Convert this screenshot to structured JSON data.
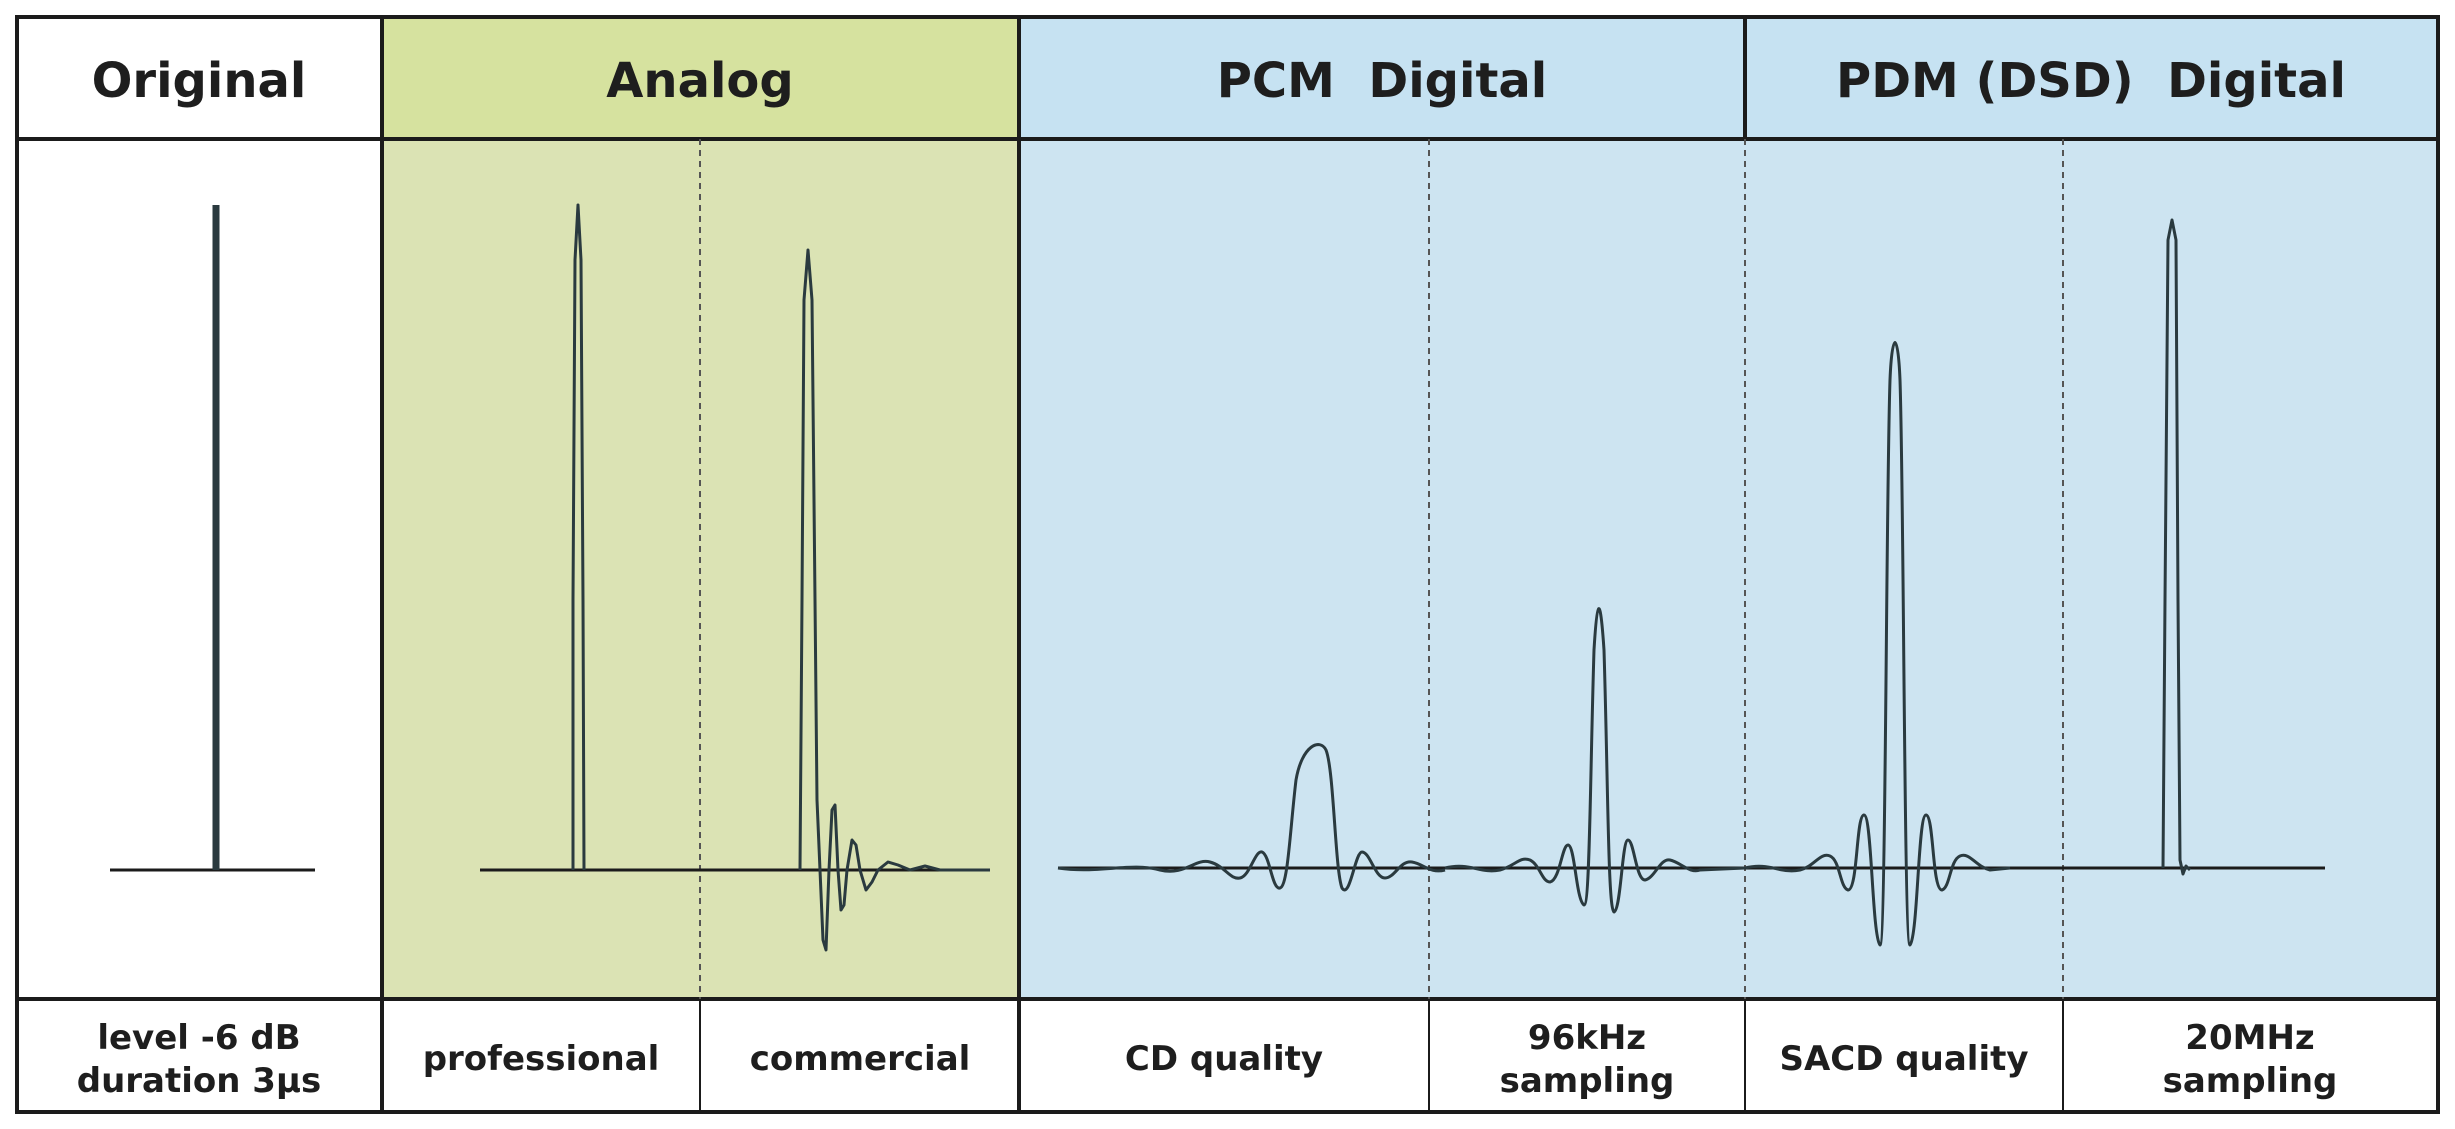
{
  "headers": {
    "original": "Original",
    "analog": "Analog",
    "pcm": "PCM  Digital",
    "pdm": "PDM (DSD)  Digital"
  },
  "captions": {
    "original_line1": "level -6 dB",
    "original_line2": "duration 3μs",
    "professional": "professional",
    "commercial": "commercial",
    "cd": "CD quality",
    "pcm96_line1": "96kHz",
    "pcm96_line2": "sampling",
    "sacd": "SACD quality",
    "pdm20_line1": "20MHz",
    "pdm20_line2": "sampling"
  },
  "colors": {
    "analog_bg": "#dbe3b4",
    "analog_header_bg": "#d6e29f",
    "digital_bg": "#cde4f1",
    "digital_header_bg": "#c6e2f2",
    "line": "#1b1b1b",
    "trace": "#2a3a3f"
  }
}
